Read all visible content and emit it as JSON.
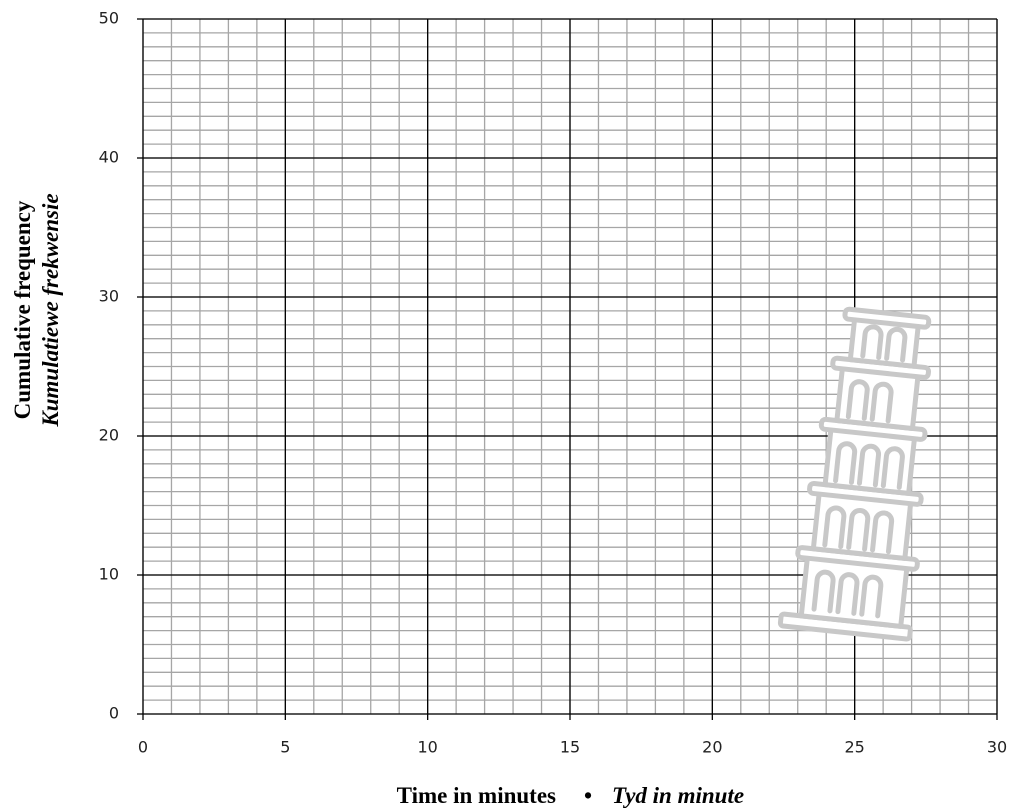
{
  "chart_data": {
    "type": "grid",
    "x_label": "Time in minutes",
    "x_label_separator": "•",
    "x_label_alt": "Tyd in minute",
    "y_label": "Cumulative frequency",
    "y_label_alt": "Kumulatiewe frekwensie",
    "xlim": [
      0,
      30
    ],
    "xticks": [
      0,
      5,
      10,
      15,
      20,
      25,
      30
    ],
    "ylim": [
      0,
      50
    ],
    "yticks": [
      0,
      10,
      20,
      30,
      40,
      50
    ],
    "grid": true,
    "minor_grid": {
      "x": 1,
      "y": 1
    },
    "major_color": "#000000",
    "minor_color": "#a6a6a6"
  }
}
